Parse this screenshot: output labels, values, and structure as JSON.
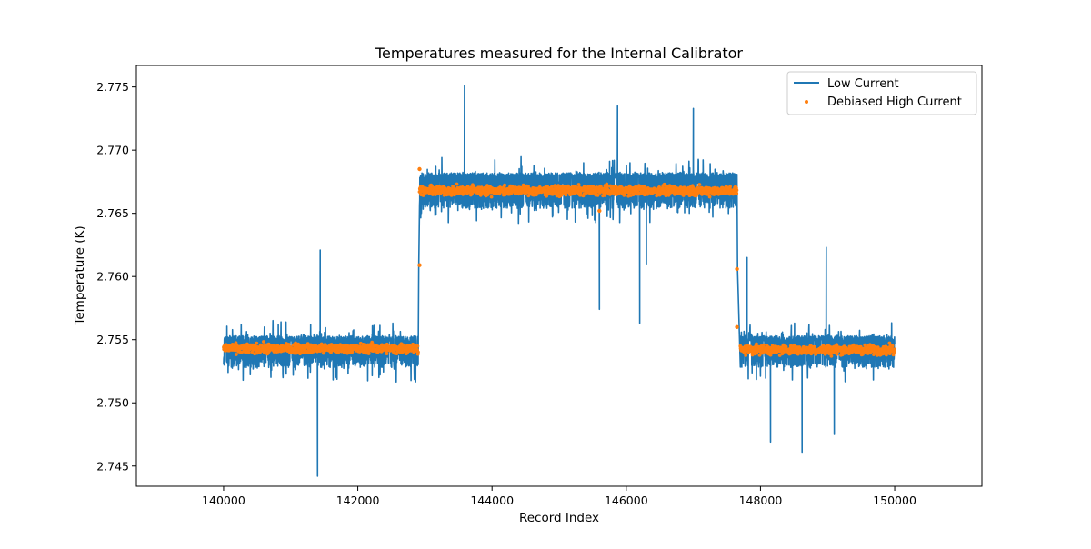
{
  "chart_data": {
    "type": "line",
    "title": "Temperatures measured for the Internal Calibrator",
    "xlabel": "Record Index",
    "ylabel": "Temperature (K)",
    "xlim": [
      138700,
      151300
    ],
    "ylim": [
      2.7434,
      2.7767
    ],
    "x_ticks": [
      140000,
      142000,
      144000,
      146000,
      148000,
      150000
    ],
    "x_tick_labels": [
      "140000",
      "142000",
      "144000",
      "146000",
      "148000",
      "150000"
    ],
    "y_ticks": [
      2.745,
      2.75,
      2.755,
      2.76,
      2.765,
      2.77,
      2.775
    ],
    "y_tick_labels": [
      "2.745",
      "2.750",
      "2.755",
      "2.760",
      "2.765",
      "2.770",
      "2.775"
    ],
    "grid": false,
    "legend_position": "top-right",
    "series": [
      {
        "name": "Low Current",
        "style": "line",
        "color": "#1f77b4",
        "segments": [
          {
            "x_start": 140000,
            "x_end": 142900,
            "mean": 2.7543,
            "band_low": 2.7528,
            "band_high": 2.7553
          },
          {
            "x_start": 142920,
            "x_end": 147650,
            "mean": 2.7668,
            "band_low": 2.7654,
            "band_high": 2.7682
          },
          {
            "x_start": 147700,
            "x_end": 150000,
            "mean": 2.7543,
            "band_low": 2.7528,
            "band_high": 2.7553
          }
        ],
        "spikes": [
          {
            "x": 141440,
            "y": 2.7621
          },
          {
            "x": 141400,
            "y": 2.7442
          },
          {
            "x": 143590,
            "y": 2.7751
          },
          {
            "x": 145870,
            "y": 2.7735
          },
          {
            "x": 145600,
            "y": 2.7574
          },
          {
            "x": 146200,
            "y": 2.7563
          },
          {
            "x": 146300,
            "y": 2.761
          },
          {
            "x": 147000,
            "y": 2.7733
          },
          {
            "x": 147800,
            "y": 2.7615
          },
          {
            "x": 148150,
            "y": 2.7469
          },
          {
            "x": 148620,
            "y": 2.7461
          },
          {
            "x": 148980,
            "y": 2.7623
          },
          {
            "x": 149100,
            "y": 2.7475
          }
        ]
      },
      {
        "name": "Debiased High Current",
        "style": "points",
        "color": "#ff7f0e",
        "segments": [
          {
            "x_start": 140000,
            "x_end": 142900,
            "mean": 2.7543
          },
          {
            "x_start": 142920,
            "x_end": 147650,
            "mean": 2.7668
          },
          {
            "x_start": 147700,
            "x_end": 150000,
            "mean": 2.7542
          }
        ],
        "outliers": [
          {
            "x": 142920,
            "y": 2.7685
          },
          {
            "x": 142920,
            "y": 2.7609
          },
          {
            "x": 145600,
            "y": 2.7652
          },
          {
            "x": 147650,
            "y": 2.7606
          },
          {
            "x": 147650,
            "y": 2.756
          }
        ]
      }
    ]
  }
}
